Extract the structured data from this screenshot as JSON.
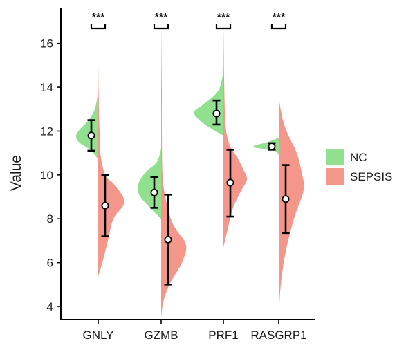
{
  "chart_data": {
    "type": "split-violin",
    "title": "",
    "xlabel": "",
    "ylabel": "Value",
    "ylim": [
      3.4,
      17.6
    ],
    "yticks": [
      4,
      6,
      8,
      10,
      12,
      14,
      16
    ],
    "grid": false,
    "legend_position": "right",
    "categories": [
      "GNLY",
      "GZMB",
      "PRF1",
      "RASGRP1"
    ],
    "significance": [
      "***",
      "***",
      "***",
      "***"
    ],
    "series": [
      {
        "name": "NC",
        "color": "#90e090",
        "side": "left",
        "stats": [
          {
            "mean": 11.8,
            "low": 11.1,
            "high": 12.5
          },
          {
            "mean": 9.2,
            "low": 8.5,
            "high": 9.9
          },
          {
            "mean": 12.8,
            "low": 12.3,
            "high": 13.4
          },
          {
            "mean": 11.3,
            "low": 11.15,
            "high": 11.45
          }
        ],
        "densities": [
          [
            [
              10.7,
              0
            ],
            [
              11.1,
              10
            ],
            [
              11.5,
              28
            ],
            [
              11.8,
              32
            ],
            [
              12.1,
              26
            ],
            [
              12.5,
              14
            ],
            [
              13.0,
              5
            ],
            [
              13.8,
              0
            ]
          ],
          [
            [
              8.0,
              0
            ],
            [
              8.5,
              16
            ],
            [
              9.0,
              30
            ],
            [
              9.4,
              34
            ],
            [
              9.8,
              30
            ],
            [
              10.2,
              20
            ],
            [
              10.6,
              6
            ],
            [
              11.2,
              0
            ]
          ],
          [
            [
              11.8,
              0
            ],
            [
              12.2,
              22
            ],
            [
              12.6,
              38
            ],
            [
              12.9,
              42
            ],
            [
              13.2,
              30
            ],
            [
              13.6,
              14
            ],
            [
              14.0,
              5
            ],
            [
              14.7,
              0
            ]
          ],
          [
            [
              10.9,
              0
            ],
            [
              11.1,
              6
            ],
            [
              11.25,
              34
            ],
            [
              11.35,
              34
            ],
            [
              11.5,
              16
            ],
            [
              11.7,
              0
            ]
          ]
        ]
      },
      {
        "name": "SEPSIS",
        "color": "#f4968a",
        "side": "right",
        "stats": [
          {
            "mean": 8.6,
            "low": 7.2,
            "high": 10.0
          },
          {
            "mean": 7.05,
            "low": 5.0,
            "high": 9.1
          },
          {
            "mean": 9.65,
            "low": 8.1,
            "high": 11.15
          },
          {
            "mean": 8.9,
            "low": 7.35,
            "high": 10.45
          }
        ],
        "densities": [
          [
            [
              5.4,
              0
            ],
            [
              6.0,
              6
            ],
            [
              7.0,
              14
            ],
            [
              8.0,
              22
            ],
            [
              8.6,
              36
            ],
            [
              9.0,
              36
            ],
            [
              9.6,
              22
            ],
            [
              10.0,
              10
            ],
            [
              11.0,
              3
            ],
            [
              12.0,
              2
            ],
            [
              13.0,
              1
            ],
            [
              15.0,
              0
            ]
          ],
          [
            [
              3.5,
              0
            ],
            [
              4.2,
              3
            ],
            [
              5.0,
              12
            ],
            [
              6.0,
              30
            ],
            [
              6.8,
              36
            ],
            [
              7.5,
              22
            ],
            [
              8.0,
              14
            ],
            [
              9.0,
              6
            ],
            [
              10.0,
              2
            ],
            [
              12.0,
              1
            ],
            [
              14.0,
              1
            ],
            [
              16.8,
              0
            ]
          ],
          [
            [
              6.7,
              0
            ],
            [
              7.5,
              6
            ],
            [
              8.5,
              14
            ],
            [
              9.3,
              26
            ],
            [
              9.8,
              34
            ],
            [
              10.3,
              28
            ],
            [
              10.8,
              20
            ],
            [
              11.3,
              10
            ],
            [
              12.0,
              4
            ],
            [
              13.0,
              2
            ],
            [
              14.5,
              1
            ],
            [
              17.0,
              0
            ]
          ],
          [
            [
              3.5,
              0
            ],
            [
              5.0,
              3
            ],
            [
              6.5,
              10
            ],
            [
              8.0,
              22
            ],
            [
              9.3,
              36
            ],
            [
              10.0,
              34
            ],
            [
              11.0,
              26
            ],
            [
              11.8,
              14
            ],
            [
              12.5,
              6
            ],
            [
              13.5,
              0
            ]
          ]
        ]
      }
    ]
  }
}
